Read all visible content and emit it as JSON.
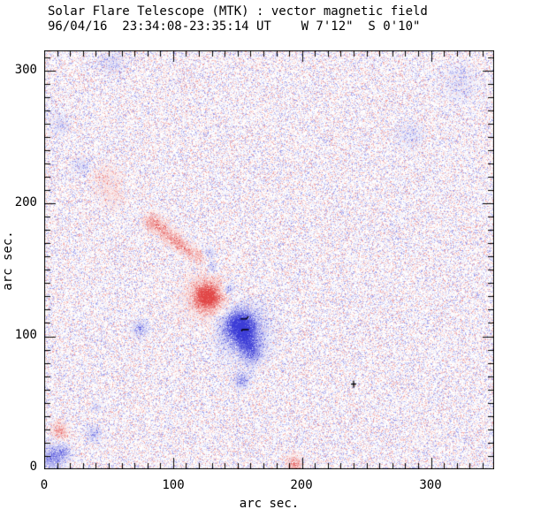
{
  "header": {
    "title": "Solar Flare Telescope (MTK) : vector magnetic field",
    "subtitle": "96/04/16  23:34:08-23:35:14 UT    W 7'12\"  S 0'10\""
  },
  "axes": {
    "xlabel": "arc sec.",
    "ylabel": "arc sec.",
    "x_tick_labels": [
      "0",
      "100",
      "200",
      "300"
    ],
    "y_tick_labels": [
      "300",
      "200",
      "100",
      "0"
    ]
  },
  "chart_data": {
    "type": "heatmap",
    "title": "Solar Flare Telescope (MTK) : vector magnetic field",
    "subtitle": "96/04/16 23:34:08-23:35:14 UT  W 7'12\" S 0'10\"",
    "xlabel": "arc sec.",
    "ylabel": "arc sec.",
    "xlim": [
      0,
      349
    ],
    "ylim": [
      0,
      315
    ],
    "major_tick_step": 100,
    "minor_tick_step": 10,
    "grid": false,
    "colors": {
      "positive_polarity": "#e14646",
      "negative_polarity": "#3c3cd7",
      "background": "#ffffff",
      "axis": "#000000"
    },
    "noise": {
      "seed": 19960416,
      "density": 0.58,
      "blue_fraction": 0.54,
      "max_amplitude": 0.56
    },
    "features": [
      {
        "x": 84,
        "y": 186,
        "sigma": 4.5,
        "amplitude": 0.55
      },
      {
        "x": 92,
        "y": 180,
        "sigma": 3.5,
        "amplitude": 0.45
      },
      {
        "x": 99,
        "y": 174,
        "sigma": 4,
        "amplitude": 0.5
      },
      {
        "x": 106,
        "y": 169,
        "sigma": 3.5,
        "amplitude": 0.45
      },
      {
        "x": 113,
        "y": 164,
        "sigma": 3.5,
        "amplitude": 0.4
      },
      {
        "x": 119,
        "y": 160,
        "sigma": 3,
        "amplitude": 0.35
      },
      {
        "x": 126,
        "y": 130,
        "sigma": 7,
        "amplitude": 0.95
      },
      {
        "x": 126,
        "y": 130,
        "sigma": 12,
        "amplitude": 0.28
      },
      {
        "x": 12,
        "y": 29,
        "sigma": 4,
        "amplitude": 0.5
      },
      {
        "x": 194,
        "y": 4,
        "sigma": 4,
        "amplitude": 0.55
      },
      {
        "x": 47,
        "y": 219,
        "sigma": 8,
        "amplitude": 0.18
      },
      {
        "x": 54,
        "y": 204,
        "sigma": 6,
        "amplitude": 0.15
      },
      {
        "x": 152,
        "y": 108,
        "sigma": 8,
        "amplitude": -1.0
      },
      {
        "x": 154,
        "y": 103,
        "sigma": 13,
        "amplitude": -0.33
      },
      {
        "x": 159,
        "y": 93,
        "sigma": 6,
        "amplitude": -0.5
      },
      {
        "x": 162,
        "y": 84,
        "sigma": 5,
        "amplitude": -0.3
      },
      {
        "x": 142,
        "y": 136,
        "sigma": 3,
        "amplitude": -0.45
      },
      {
        "x": 128,
        "y": 163,
        "sigma": 2.5,
        "amplitude": -0.35
      },
      {
        "x": 130,
        "y": 152,
        "sigma": 2.5,
        "amplitude": -0.35
      },
      {
        "x": 74,
        "y": 106,
        "sigma": 4,
        "amplitude": -0.4
      },
      {
        "x": 153,
        "y": 67,
        "sigma": 4,
        "amplitude": -0.45
      },
      {
        "x": 6,
        "y": 9,
        "sigma": 6,
        "amplitude": -0.55
      },
      {
        "x": 15,
        "y": 14,
        "sigma": 4,
        "amplitude": -0.3
      },
      {
        "x": 38,
        "y": 27,
        "sigma": 4,
        "amplitude": -0.3
      },
      {
        "x": 40,
        "y": 47,
        "sigma": 3,
        "amplitude": -0.2
      },
      {
        "x": 53,
        "y": 306,
        "sigma": 6,
        "amplitude": -0.2
      },
      {
        "x": 322,
        "y": 291,
        "sigma": 9,
        "amplitude": -0.15
      },
      {
        "x": 283,
        "y": 252,
        "sigma": 7,
        "amplitude": -0.15
      },
      {
        "x": 30,
        "y": 228,
        "sigma": 5,
        "amplitude": -0.2
      },
      {
        "x": 12,
        "y": 260,
        "sigma": 5,
        "amplitude": -0.2
      }
    ],
    "vector_marks": [
      {
        "x": 155,
        "y": 113,
        "type": "hook"
      },
      {
        "x": 156,
        "y": 105,
        "type": "dash"
      },
      {
        "x": 240,
        "y": 64,
        "type": "cross"
      }
    ]
  }
}
